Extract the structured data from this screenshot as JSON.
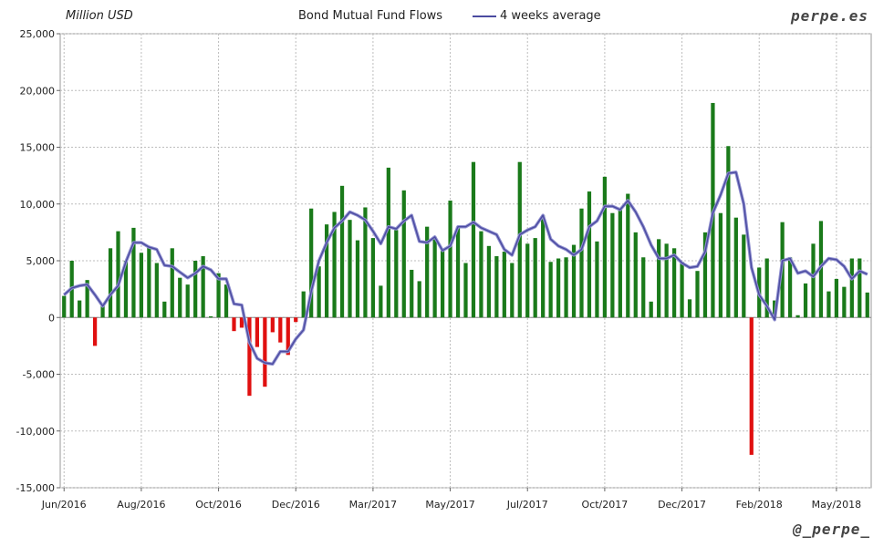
{
  "header": {
    "unit_label": "Million USD",
    "brand": "perpe.es",
    "handle": "@_perpe_"
  },
  "colors": {
    "positive": "#1a7a1a",
    "negative": "#e01010",
    "average_line": "#4b4ba0",
    "grid": "#bdbdbd"
  },
  "chart_data": {
    "type": "bar",
    "title": "Bond Mutual Fund Flows",
    "ylabel": "Million USD",
    "ylim": [
      -15000,
      25000
    ],
    "y_ticks": [
      "25,000",
      "20,000",
      "15,000",
      "10,000",
      "5,000",
      "0",
      "-5,000",
      "-10,000",
      "-15,000"
    ],
    "y_tick_values": [
      25000,
      20000,
      15000,
      10000,
      5000,
      0,
      -5000,
      -10000,
      -15000
    ],
    "x_ticks": [
      {
        "label": "Jun/2016",
        "index": 0
      },
      {
        "label": "Aug/2016",
        "index": 10
      },
      {
        "label": "Oct/2016",
        "index": 20
      },
      {
        "label": "Dec/2016",
        "index": 30
      },
      {
        "label": "Mar/2017",
        "index": 40
      },
      {
        "label": "May/2017",
        "index": 50
      },
      {
        "label": "Jul/2017",
        "index": 60
      },
      {
        "label": "Oct/2017",
        "index": 70
      },
      {
        "label": "Dec/2017",
        "index": 80
      },
      {
        "label": "Feb/2018",
        "index": 90
      },
      {
        "label": "May/2018",
        "index": 100
      }
    ],
    "series": [
      {
        "name": "Bond Mutual Fund Flows",
        "kind": "bar",
        "values": [
          1900,
          5000,
          1500,
          3300,
          -2500,
          1200,
          6100,
          7600,
          5000,
          7900,
          5700,
          6200,
          4800,
          1400,
          6100,
          3500,
          2900,
          5000,
          5400,
          100,
          3900,
          2900,
          -1200,
          -900,
          -6900,
          -2600,
          -6100,
          -1300,
          -2200,
          -3300,
          -400,
          2300,
          9600,
          4500,
          8200,
          9300,
          11600,
          8600,
          6800,
          9700,
          7000,
          2800,
          13200,
          7700,
          11200,
          4200,
          3200,
          8000,
          7100,
          5900,
          10300,
          8000,
          4800,
          13700,
          7600,
          6300,
          5400,
          5800,
          4800,
          13700,
          6500,
          7000,
          9000,
          4900,
          5200,
          5300,
          6400,
          9600,
          11100,
          6700,
          12400,
          9200,
          9500,
          10900,
          7500,
          5300,
          1400,
          6900,
          6500,
          6100,
          4900,
          1600,
          4100,
          7500,
          18900,
          9200,
          15100,
          8800,
          7300,
          -12100,
          4400,
          5200,
          1500,
          8400,
          5300,
          200,
          3000,
          6500,
          8500,
          2300,
          3400,
          2700,
          5200,
          5200,
          2200
        ]
      },
      {
        "name": "4 weeks average",
        "kind": "line",
        "values": [
          2000,
          2600,
          2800,
          2900,
          2000,
          1000,
          2000,
          2800,
          4900,
          6600,
          6600,
          6200,
          6000,
          4600,
          4500,
          4000,
          3500,
          3900,
          4500,
          4200,
          3400,
          3400,
          1200,
          1100,
          -2200,
          -3600,
          -4000,
          -4100,
          -3000,
          -3000,
          -1900,
          -1100,
          2300,
          5000,
          6600,
          7900,
          8500,
          9300,
          9000,
          8600,
          7600,
          6500,
          8000,
          7800,
          8500,
          9000,
          6700,
          6600,
          7100,
          5900,
          6300,
          8000,
          8000,
          8400,
          7900,
          7600,
          7300,
          6000,
          5500,
          7300,
          7700,
          8000,
          9000,
          6900,
          6300,
          6000,
          5500,
          6000,
          8000,
          8500,
          9800,
          9800,
          9500,
          10300,
          9300,
          8000,
          6400,
          5200,
          5200,
          5500,
          4800,
          4400,
          4500,
          5800,
          9200,
          10800,
          12700,
          12800,
          10000,
          4400,
          2000,
          1000,
          -200,
          5000,
          5200,
          3900,
          4100,
          3600,
          4500,
          5200,
          5100,
          4500,
          3400,
          4100,
          3800
        ]
      }
    ],
    "legend": [
      "4 weeks average"
    ],
    "legend_position": "top-center",
    "grid": true
  }
}
